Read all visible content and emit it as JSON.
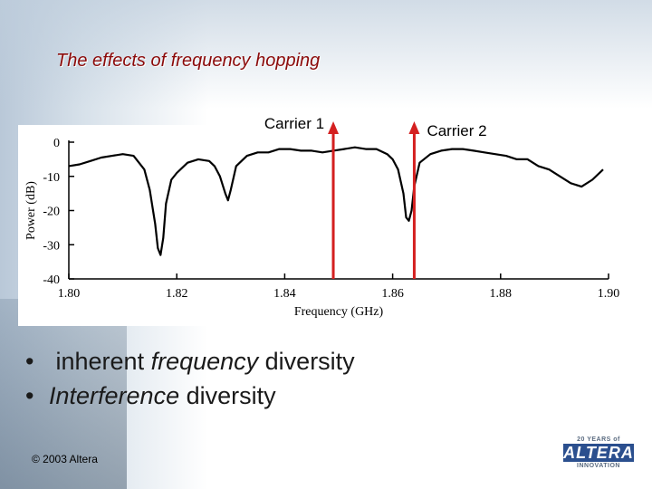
{
  "slide": {
    "title": "The effects of frequency hopping",
    "bullets": [
      {
        "plain_before": " inherent ",
        "italic": "frequency",
        "plain_after": " diversity"
      },
      {
        "plain_before": "",
        "italic": "Interference",
        "plain_after": " diversity"
      }
    ],
    "copyright": "© 2003 Altera",
    "logo": {
      "top": "20 YEARS of",
      "mark": "ALTERA",
      "bottom": "INNOVATION"
    }
  },
  "chart_data": {
    "type": "line",
    "xlabel": "Frequency (GHz)",
    "ylabel": "Power (dB)",
    "xlim": [
      1.8,
      1.9
    ],
    "ylim": [
      -40,
      0
    ],
    "xticks": [
      "1.80",
      "1.82",
      "1.84",
      "1.86",
      "1.88",
      "1.90"
    ],
    "yticks": [
      "0",
      "-10",
      "-20",
      "-30",
      "-40"
    ],
    "series": [
      {
        "x": [
          1.8,
          1.802,
          1.804,
          1.806,
          1.808,
          1.81,
          1.812,
          1.813,
          1.814,
          1.815,
          1.816,
          1.8165,
          1.817,
          1.8175,
          1.818,
          1.819,
          1.82,
          1.822,
          1.824,
          1.826,
          1.827,
          1.828,
          1.829,
          1.8295,
          1.83,
          1.831,
          1.833,
          1.835,
          1.837,
          1.839,
          1.841,
          1.843,
          1.845,
          1.847,
          1.849,
          1.851,
          1.853,
          1.855,
          1.857,
          1.859,
          1.86,
          1.861,
          1.862,
          1.8625,
          1.863,
          1.8635,
          1.864,
          1.865,
          1.867,
          1.869,
          1.871,
          1.873,
          1.875,
          1.877,
          1.879,
          1.881,
          1.883,
          1.885,
          1.887,
          1.889,
          1.891,
          1.893,
          1.895,
          1.897,
          1.899
        ],
        "y": [
          -7,
          -6.5,
          -5.5,
          -4.5,
          -4,
          -3.5,
          -4,
          -6,
          -8,
          -14,
          -24,
          -31,
          -33,
          -28,
          -18,
          -11,
          -9,
          -6,
          -5,
          -5.5,
          -7,
          -10,
          -15,
          -17,
          -14,
          -7,
          -4,
          -3,
          -3,
          -2,
          -2,
          -2.5,
          -2.5,
          -3,
          -2.5,
          -2,
          -1.5,
          -2,
          -2,
          -3.5,
          -5,
          -8,
          -15,
          -22,
          -23,
          -20,
          -13,
          -6,
          -3.5,
          -2.5,
          -2,
          -2,
          -2.5,
          -3,
          -3.5,
          -4,
          -5,
          -5,
          -7,
          -8,
          -10,
          -12,
          -13,
          -11,
          -8
        ]
      }
    ],
    "annotations": [
      "Carrier 1",
      "Carrier 2"
    ],
    "carrier_x": [
      1.849,
      1.864
    ],
    "colors": {
      "line": "#000000",
      "carrier": "#d42020",
      "title": "#8b0a0a"
    }
  }
}
